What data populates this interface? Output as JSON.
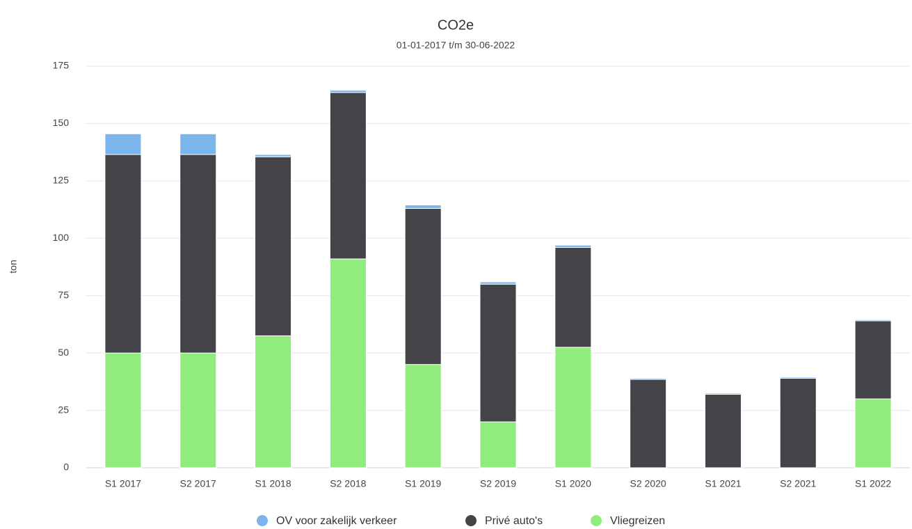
{
  "chart_data": {
    "type": "stacked_bar",
    "title": "CO2e",
    "subtitle": "01-01-2017 t/m 30-06-2022",
    "y_label": "ton",
    "categories": [
      "S1 2017",
      "S2 2017",
      "S1 2018",
      "S2 2018",
      "S1 2019",
      "S2 2019",
      "S1 2020",
      "S2 2020",
      "S1 2021",
      "S2 2021",
      "S1 2022"
    ],
    "series": [
      {
        "name": "OV voor zakelijk verkeer",
        "color": "#7cb5ec",
        "values": [
          9,
          9,
          1,
          1,
          1.5,
          1,
          1,
          0.5,
          0.5,
          0.5,
          0.5
        ]
      },
      {
        "name": "Privé auto's",
        "color": "#434348",
        "values": [
          86.5,
          86.5,
          78,
          72.5,
          68,
          60,
          43.5,
          38.5,
          32,
          39,
          34
        ]
      },
      {
        "name": "Vliegreizen",
        "color": "#90ed7d",
        "values": [
          50,
          50,
          57.5,
          91,
          45,
          20,
          52.5,
          0,
          0,
          0,
          30
        ]
      }
    ],
    "ylim": [
      0,
      175
    ],
    "yticks": [
      0,
      25,
      50,
      75,
      100,
      125,
      150,
      175
    ],
    "grid": true,
    "legend": "bottom"
  }
}
